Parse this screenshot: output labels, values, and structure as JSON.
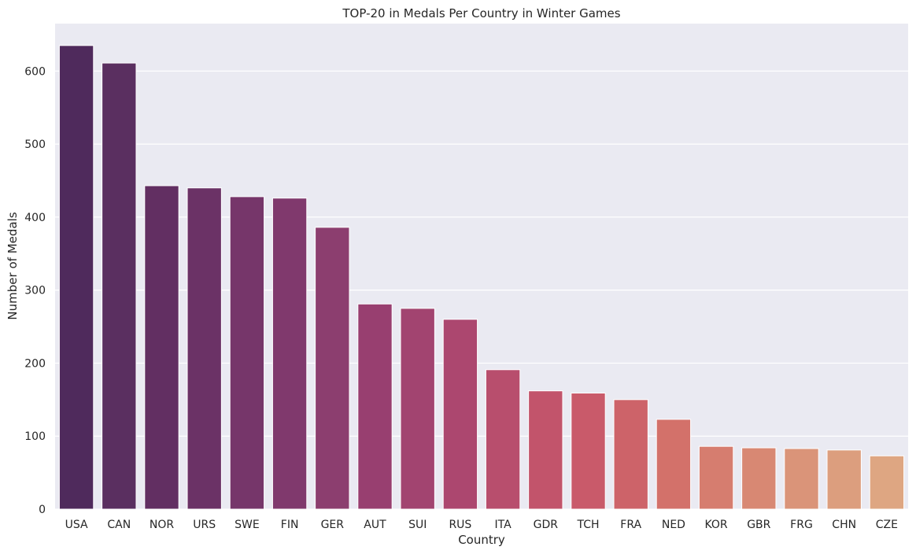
{
  "chart_data": {
    "type": "bar",
    "title": "TOP-20 in Medals Per Country in Winter Games",
    "xlabel": "Country",
    "ylabel": "Number of Medals",
    "categories": [
      "USA",
      "CAN",
      "NOR",
      "URS",
      "SWE",
      "FIN",
      "GER",
      "AUT",
      "SUI",
      "RUS",
      "ITA",
      "GDR",
      "TCH",
      "FRA",
      "NED",
      "KOR",
      "GBR",
      "FRG",
      "CHN",
      "CZE"
    ],
    "values": [
      635,
      611,
      443,
      440,
      428,
      426,
      386,
      281,
      275,
      260,
      191,
      162,
      159,
      150,
      123,
      86,
      84,
      83,
      81,
      73
    ],
    "ylim": [
      0,
      665
    ],
    "yticks": [
      0,
      100,
      200,
      300,
      400,
      500,
      600
    ],
    "grid": true,
    "legend": "none",
    "colors": [
      "#4f2a5c",
      "#5a2f60",
      "#622f62",
      "#6b3266",
      "#76366a",
      "#80396d",
      "#8c3e6f",
      "#983f70",
      "#a24470",
      "#ac476f",
      "#b84e6d",
      "#c2546b",
      "#c95a6a",
      "#cd6369",
      "#d3716a",
      "#d67d6f",
      "#d88873",
      "#da9479",
      "#dc9e7e",
      "#dea682"
    ],
    "background_color": "#eaeaf2",
    "grid_color": "#ffffff"
  }
}
